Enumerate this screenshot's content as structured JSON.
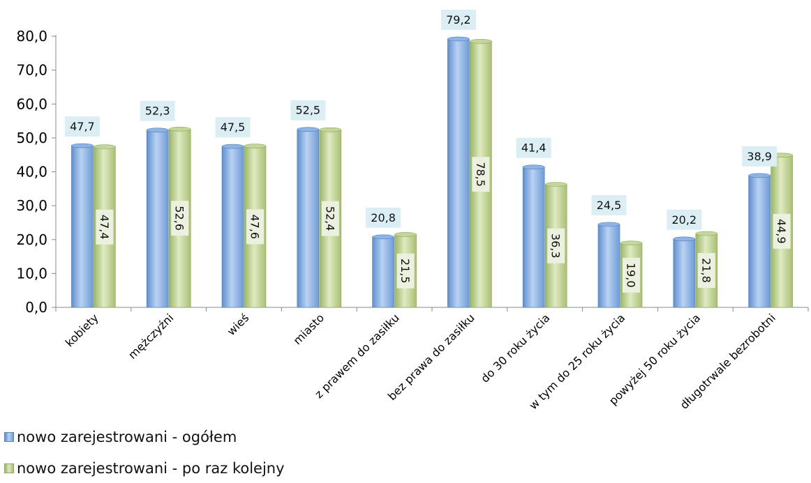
{
  "chart_data": {
    "type": "bar",
    "categories": [
      "kobiety",
      "mężczyźni",
      "wieś",
      "miasto",
      "z prawem do zasiłku",
      "bez prawa do zasiłku",
      "do 30 roku życia",
      "w tym do 25 roku życia",
      "powyżej 50 roku życia",
      "długotrwale bezrobotni"
    ],
    "series": [
      {
        "name": "nowo zarejestrowani - ogółem",
        "color": "#8db4e2",
        "values": [
          47.7,
          52.3,
          47.5,
          52.5,
          20.8,
          79.2,
          41.4,
          24.5,
          20.2,
          38.9
        ],
        "labels": [
          "47,7",
          "52,3",
          "47,5",
          "52,5",
          "20,8",
          "79,2",
          "41,4",
          "24,5",
          "20,2",
          "38,9"
        ]
      },
      {
        "name": "nowo zarejestrowani - po raz kolejny",
        "color": "#c4d79b",
        "values": [
          47.4,
          52.6,
          47.6,
          52.4,
          21.5,
          78.5,
          36.3,
          19.0,
          21.8,
          44.9
        ],
        "labels": [
          "47,4",
          "52,6",
          "47,6",
          "52,4",
          "21,5",
          "78,5",
          "36,3",
          "19,0",
          "21,8",
          "44,9"
        ]
      }
    ],
    "y_ticks": [
      "0,0",
      "10,0",
      "20,0",
      "30,0",
      "40,0",
      "50,0",
      "60,0",
      "70,0",
      "80,0"
    ],
    "ylim": [
      0,
      80
    ],
    "title": "",
    "xlabel": "",
    "ylabel": "",
    "grid": false,
    "legend_position": "bottom-left"
  },
  "legend": {
    "items": [
      "nowo zarejestrowani - ogółem",
      "nowo zarejestrowani - po raz kolejny"
    ]
  }
}
